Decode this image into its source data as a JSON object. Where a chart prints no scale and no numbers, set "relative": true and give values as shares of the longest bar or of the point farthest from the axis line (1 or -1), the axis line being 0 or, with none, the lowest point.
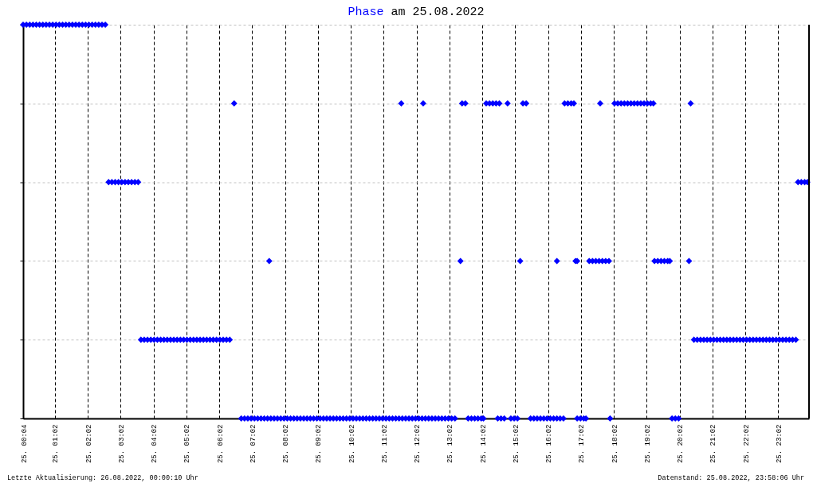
{
  "chart_data": {
    "type": "scatter",
    "title": "Phase am 25.08.2022",
    "annotations": [
      "Letzte Aktualisierung: 26.08.2022, 00:00:10 Uhr",
      "Datenstand: 25.08.2022, 23:58:06 Uhr"
    ],
    "xlim": [
      "2022-08-25T00:04",
      "2022-08-25T23:58"
    ],
    "xticks": [
      {
        "value": "2022-08-25T00:04",
        "label": "25.  00:04"
      },
      {
        "value": "2022-08-25T01:02",
        "label": "25.  01:02"
      },
      {
        "value": "2022-08-25T02:02",
        "label": "25.  02:02"
      },
      {
        "value": "2022-08-25T03:02",
        "label": "25.  03:02"
      },
      {
        "value": "2022-08-25T04:02",
        "label": "25.  04:02"
      },
      {
        "value": "2022-08-25T05:02",
        "label": "25.  05:02"
      },
      {
        "value": "2022-08-25T06:02",
        "label": "25.  06:02"
      },
      {
        "value": "2022-08-25T07:02",
        "label": "25.  07:02"
      },
      {
        "value": "2022-08-25T08:02",
        "label": "25.  08:02"
      },
      {
        "value": "2022-08-25T09:02",
        "label": "25.  09:02"
      },
      {
        "value": "2022-08-25T10:02",
        "label": "25.  10:02"
      },
      {
        "value": "2022-08-25T11:02",
        "label": "25.  11:02"
      },
      {
        "value": "2022-08-25T12:02",
        "label": "25.  12:02"
      },
      {
        "value": "2022-08-25T13:02",
        "label": "25.  13:02"
      },
      {
        "value": "2022-08-25T14:02",
        "label": "25.  14:02"
      },
      {
        "value": "2022-08-25T15:02",
        "label": "25.  15:02"
      },
      {
        "value": "2022-08-25T16:02",
        "label": "25.  16:02"
      },
      {
        "value": "2022-08-25T17:02",
        "label": "25.  17:02"
      },
      {
        "value": "2022-08-25T18:02",
        "label": "25.  18:02"
      },
      {
        "value": "2022-08-25T19:02",
        "label": "25.  19:02"
      },
      {
        "value": "2022-08-25T20:02",
        "label": "25.  20:02"
      },
      {
        "value": "2022-08-25T21:02",
        "label": "25.  21:02"
      },
      {
        "value": "2022-08-25T22:02",
        "label": "25.  22:02"
      },
      {
        "value": "2022-08-25T23:02",
        "label": "25.  23:02"
      }
    ],
    "relative": true,
    "tick_labels": "x",
    "grid": true,
    "marker": "diamond",
    "series": [
      {
        "color": "#0000ff",
        "x": [
          "2022-08-25T00:04",
          "2022-08-25T00:10",
          "2022-08-25T00:16",
          "2022-08-25T00:22",
          "2022-08-25T00:28",
          "2022-08-25T00:34",
          "2022-08-25T00:40",
          "2022-08-25T00:46",
          "2022-08-25T00:52",
          "2022-08-25T00:58",
          "2022-08-25T01:04",
          "2022-08-25T01:10",
          "2022-08-25T01:16",
          "2022-08-25T01:22",
          "2022-08-25T01:28",
          "2022-08-25T01:34",
          "2022-08-25T01:40",
          "2022-08-25T01:46",
          "2022-08-25T01:52",
          "2022-08-25T01:58",
          "2022-08-25T02:04",
          "2022-08-25T02:10",
          "2022-08-25T02:16",
          "2022-08-25T02:22",
          "2022-08-25T02:28",
          "2022-08-25T02:34",
          "2022-08-25T02:40",
          "2022-08-25T02:46",
          "2022-08-25T02:52",
          "2022-08-25T02:58",
          "2022-08-25T03:04",
          "2022-08-25T03:10",
          "2022-08-25T03:16",
          "2022-08-25T03:22",
          "2022-08-25T03:28",
          "2022-08-25T03:34",
          "2022-08-25T03:39",
          "2022-08-25T03:45",
          "2022-08-25T03:51",
          "2022-08-25T03:57",
          "2022-08-25T04:03",
          "2022-08-25T04:09",
          "2022-08-25T04:15",
          "2022-08-25T04:21",
          "2022-08-25T04:27",
          "2022-08-25T04:33",
          "2022-08-25T04:39",
          "2022-08-25T04:45",
          "2022-08-25T04:51",
          "2022-08-25T04:57",
          "2022-08-25T05:03",
          "2022-08-25T05:09",
          "2022-08-25T05:15",
          "2022-08-25T05:21",
          "2022-08-25T05:27",
          "2022-08-25T05:33",
          "2022-08-25T05:39",
          "2022-08-25T05:45",
          "2022-08-25T05:51",
          "2022-08-25T05:57",
          "2022-08-25T06:03",
          "2022-08-25T06:09",
          "2022-08-25T06:15",
          "2022-08-25T06:21",
          "2022-08-25T06:29",
          "2022-08-25T06:42",
          "2022-08-25T06:48",
          "2022-08-25T06:54",
          "2022-08-25T07:00",
          "2022-08-25T07:06",
          "2022-08-25T07:12",
          "2022-08-25T07:18",
          "2022-08-25T07:24",
          "2022-08-25T07:30",
          "2022-08-25T07:36",
          "2022-08-25T07:42",
          "2022-08-25T07:48",
          "2022-08-25T07:54",
          "2022-08-25T08:00",
          "2022-08-25T08:06",
          "2022-08-25T08:12",
          "2022-08-25T08:18",
          "2022-08-25T08:24",
          "2022-08-25T08:30",
          "2022-08-25T08:36",
          "2022-08-25T08:42",
          "2022-08-25T08:48",
          "2022-08-25T08:54",
          "2022-08-25T09:00",
          "2022-08-25T09:06",
          "2022-08-25T09:12",
          "2022-08-25T09:18",
          "2022-08-25T09:24",
          "2022-08-25T09:30",
          "2022-08-25T09:36",
          "2022-08-25T09:42",
          "2022-08-25T09:48",
          "2022-08-25T09:54",
          "2022-08-25T10:00",
          "2022-08-25T10:06",
          "2022-08-25T10:12",
          "2022-08-25T10:18",
          "2022-08-25T10:24",
          "2022-08-25T10:30",
          "2022-08-25T10:36",
          "2022-08-25T10:42",
          "2022-08-25T10:48",
          "2022-08-25T10:54",
          "2022-08-25T11:00",
          "2022-08-25T11:06",
          "2022-08-25T11:12",
          "2022-08-25T11:18",
          "2022-08-25T11:24",
          "2022-08-25T11:30",
          "2022-08-25T11:36",
          "2022-08-25T11:42",
          "2022-08-25T11:48",
          "2022-08-25T11:54",
          "2022-08-25T12:00",
          "2022-08-25T12:06",
          "2022-08-25T12:12",
          "2022-08-25T12:18",
          "2022-08-25T12:24",
          "2022-08-25T12:30",
          "2022-08-25T12:36",
          "2022-08-25T12:42",
          "2022-08-25T12:48",
          "2022-08-25T12:54",
          "2022-08-25T13:00",
          "2022-08-25T13:06",
          "2022-08-25T13:12",
          "2022-08-25T07:33",
          "2022-08-25T11:34",
          "2022-08-25T12:14",
          "2022-08-25T13:22",
          "2022-08-25T13:25",
          "2022-08-25T13:31",
          "2022-08-25T13:36",
          "2022-08-25T13:42",
          "2022-08-25T13:48",
          "2022-08-25T13:54",
          "2022-08-25T14:00",
          "2022-08-25T14:04",
          "2022-08-25T14:09",
          "2022-08-25T14:15",
          "2022-08-25T14:21",
          "2022-08-25T14:27",
          "2022-08-25T14:33",
          "2022-08-25T14:48",
          "2022-08-25T14:30",
          "2022-08-25T14:36",
          "2022-08-25T14:42",
          "2022-08-25T14:54",
          "2022-08-25T15:00",
          "2022-08-25T15:06",
          "2022-08-25T15:11",
          "2022-08-25T15:16",
          "2022-08-25T15:22",
          "2022-08-25T15:30",
          "2022-08-25T15:36",
          "2022-08-25T15:42",
          "2022-08-25T15:48",
          "2022-08-25T15:54",
          "2022-08-25T16:00",
          "2022-08-25T16:06",
          "2022-08-25T16:12",
          "2022-08-25T16:18",
          "2022-08-25T16:24",
          "2022-08-25T16:30",
          "2022-08-25T16:18",
          "2022-08-25T16:32",
          "2022-08-25T16:38",
          "2022-08-25T16:44",
          "2022-08-25T16:49",
          "2022-08-25T16:52",
          "2022-08-25T16:55",
          "2022-08-25T16:55",
          "2022-08-25T17:01",
          "2022-08-25T17:07",
          "2022-08-25T17:11",
          "2022-08-25T17:37",
          "2022-08-25T17:17",
          "2022-08-25T17:23",
          "2022-08-25T17:29",
          "2022-08-25T17:35",
          "2022-08-25T17:41",
          "2022-08-25T17:47",
          "2022-08-25T17:53",
          "2022-08-25T17:55",
          "2022-08-25T18:03",
          "2022-08-25T18:09",
          "2022-08-25T18:15",
          "2022-08-25T18:21",
          "2022-08-25T18:27",
          "2022-08-25T18:33",
          "2022-08-25T18:39",
          "2022-08-25T18:45",
          "2022-08-25T18:51",
          "2022-08-25T18:57",
          "2022-08-25T19:03",
          "2022-08-25T19:09",
          "2022-08-25T19:14",
          "2022-08-25T19:16",
          "2022-08-25T19:22",
          "2022-08-25T19:28",
          "2022-08-25T19:34",
          "2022-08-25T19:40",
          "2022-08-25T19:44",
          "2022-08-25T19:48",
          "2022-08-25T19:54",
          "2022-08-25T20:00",
          "2022-08-25T20:19",
          "2022-08-25T20:22",
          "2022-08-25T20:28",
          "2022-08-25T20:34",
          "2022-08-25T20:40",
          "2022-08-25T20:46",
          "2022-08-25T20:52",
          "2022-08-25T20:58",
          "2022-08-25T21:04",
          "2022-08-25T21:10",
          "2022-08-25T21:16",
          "2022-08-25T21:22",
          "2022-08-25T21:28",
          "2022-08-25T21:34",
          "2022-08-25T21:40",
          "2022-08-25T21:46",
          "2022-08-25T21:52",
          "2022-08-25T21:58",
          "2022-08-25T22:04",
          "2022-08-25T22:10",
          "2022-08-25T22:16",
          "2022-08-25T22:22",
          "2022-08-25T22:28",
          "2022-08-25T22:34",
          "2022-08-25T22:40",
          "2022-08-25T22:46",
          "2022-08-25T22:52",
          "2022-08-25T22:58",
          "2022-08-25T23:04",
          "2022-08-25T23:10",
          "2022-08-25T23:16",
          "2022-08-25T23:22",
          "2022-08-25T23:28",
          "2022-08-25T23:34",
          "2022-08-25T23:38",
          "2022-08-25T23:44",
          "2022-08-25T23:50",
          "2022-08-25T23:55"
        ],
        "values": [
          1,
          1,
          1,
          1,
          1,
          1,
          1,
          1,
          1,
          1,
          1,
          1,
          1,
          1,
          1,
          1,
          1,
          1,
          1,
          1,
          1,
          1,
          1,
          1,
          1,
          1,
          0.6,
          0.6,
          0.6,
          0.6,
          0.6,
          0.6,
          0.6,
          0.6,
          0.6,
          0.6,
          0.2,
          0.2,
          0.2,
          0.2,
          0.2,
          0.2,
          0.2,
          0.2,
          0.2,
          0.2,
          0.2,
          0.2,
          0.2,
          0.2,
          0.2,
          0.2,
          0.2,
          0.2,
          0.2,
          0.2,
          0.2,
          0.2,
          0.2,
          0.2,
          0.2,
          0.2,
          0.2,
          0.2,
          0.8,
          0,
          0,
          0,
          0,
          0,
          0,
          0,
          0,
          0,
          0,
          0,
          0,
          0,
          0,
          0,
          0,
          0,
          0,
          0,
          0,
          0,
          0,
          0,
          0,
          0,
          0,
          0,
          0,
          0,
          0,
          0,
          0,
          0,
          0,
          0,
          0,
          0,
          0,
          0,
          0,
          0,
          0,
          0,
          0,
          0,
          0,
          0,
          0,
          0,
          0,
          0,
          0,
          0,
          0,
          0,
          0,
          0,
          0,
          0,
          0,
          0,
          0,
          0,
          0,
          0,
          0,
          0.4,
          0.8,
          0.8,
          0.4,
          0.8,
          0.8,
          0,
          0,
          0,
          0,
          0,
          0,
          0.8,
          0.8,
          0.8,
          0.8,
          0.8,
          0.8,
          0,
          0,
          0,
          0,
          0,
          0,
          0.4,
          0.8,
          0.8,
          0,
          0,
          0,
          0,
          0,
          0,
          0,
          0,
          0,
          0,
          0,
          0.4,
          0.8,
          0.8,
          0.8,
          0.8,
          0.4,
          0.4,
          0,
          0,
          0,
          0,
          0.8,
          0.4,
          0.4,
          0.4,
          0.4,
          0.4,
          0.4,
          0.4,
          0,
          0.8,
          0.8,
          0.8,
          0.8,
          0.8,
          0.8,
          0.8,
          0.8,
          0.8,
          0.8,
          0.8,
          0.8,
          0.8,
          0.4,
          0.4,
          0.4,
          0.4,
          0.4,
          0.4,
          0,
          0,
          0,
          0.4,
          0.8,
          0.2,
          0.2,
          0.2,
          0.2,
          0.2,
          0.2,
          0.2,
          0.2,
          0.2,
          0.2,
          0.2,
          0.2,
          0.2,
          0.2,
          0.2,
          0.2,
          0.2,
          0.2,
          0.2,
          0.2,
          0.2,
          0.2,
          0.2,
          0.2,
          0.2,
          0.2,
          0.2,
          0.2,
          0.2,
          0.2,
          0.2,
          0.2,
          0.6,
          0.6,
          0.6,
          0.6
        ]
      }
    ]
  }
}
